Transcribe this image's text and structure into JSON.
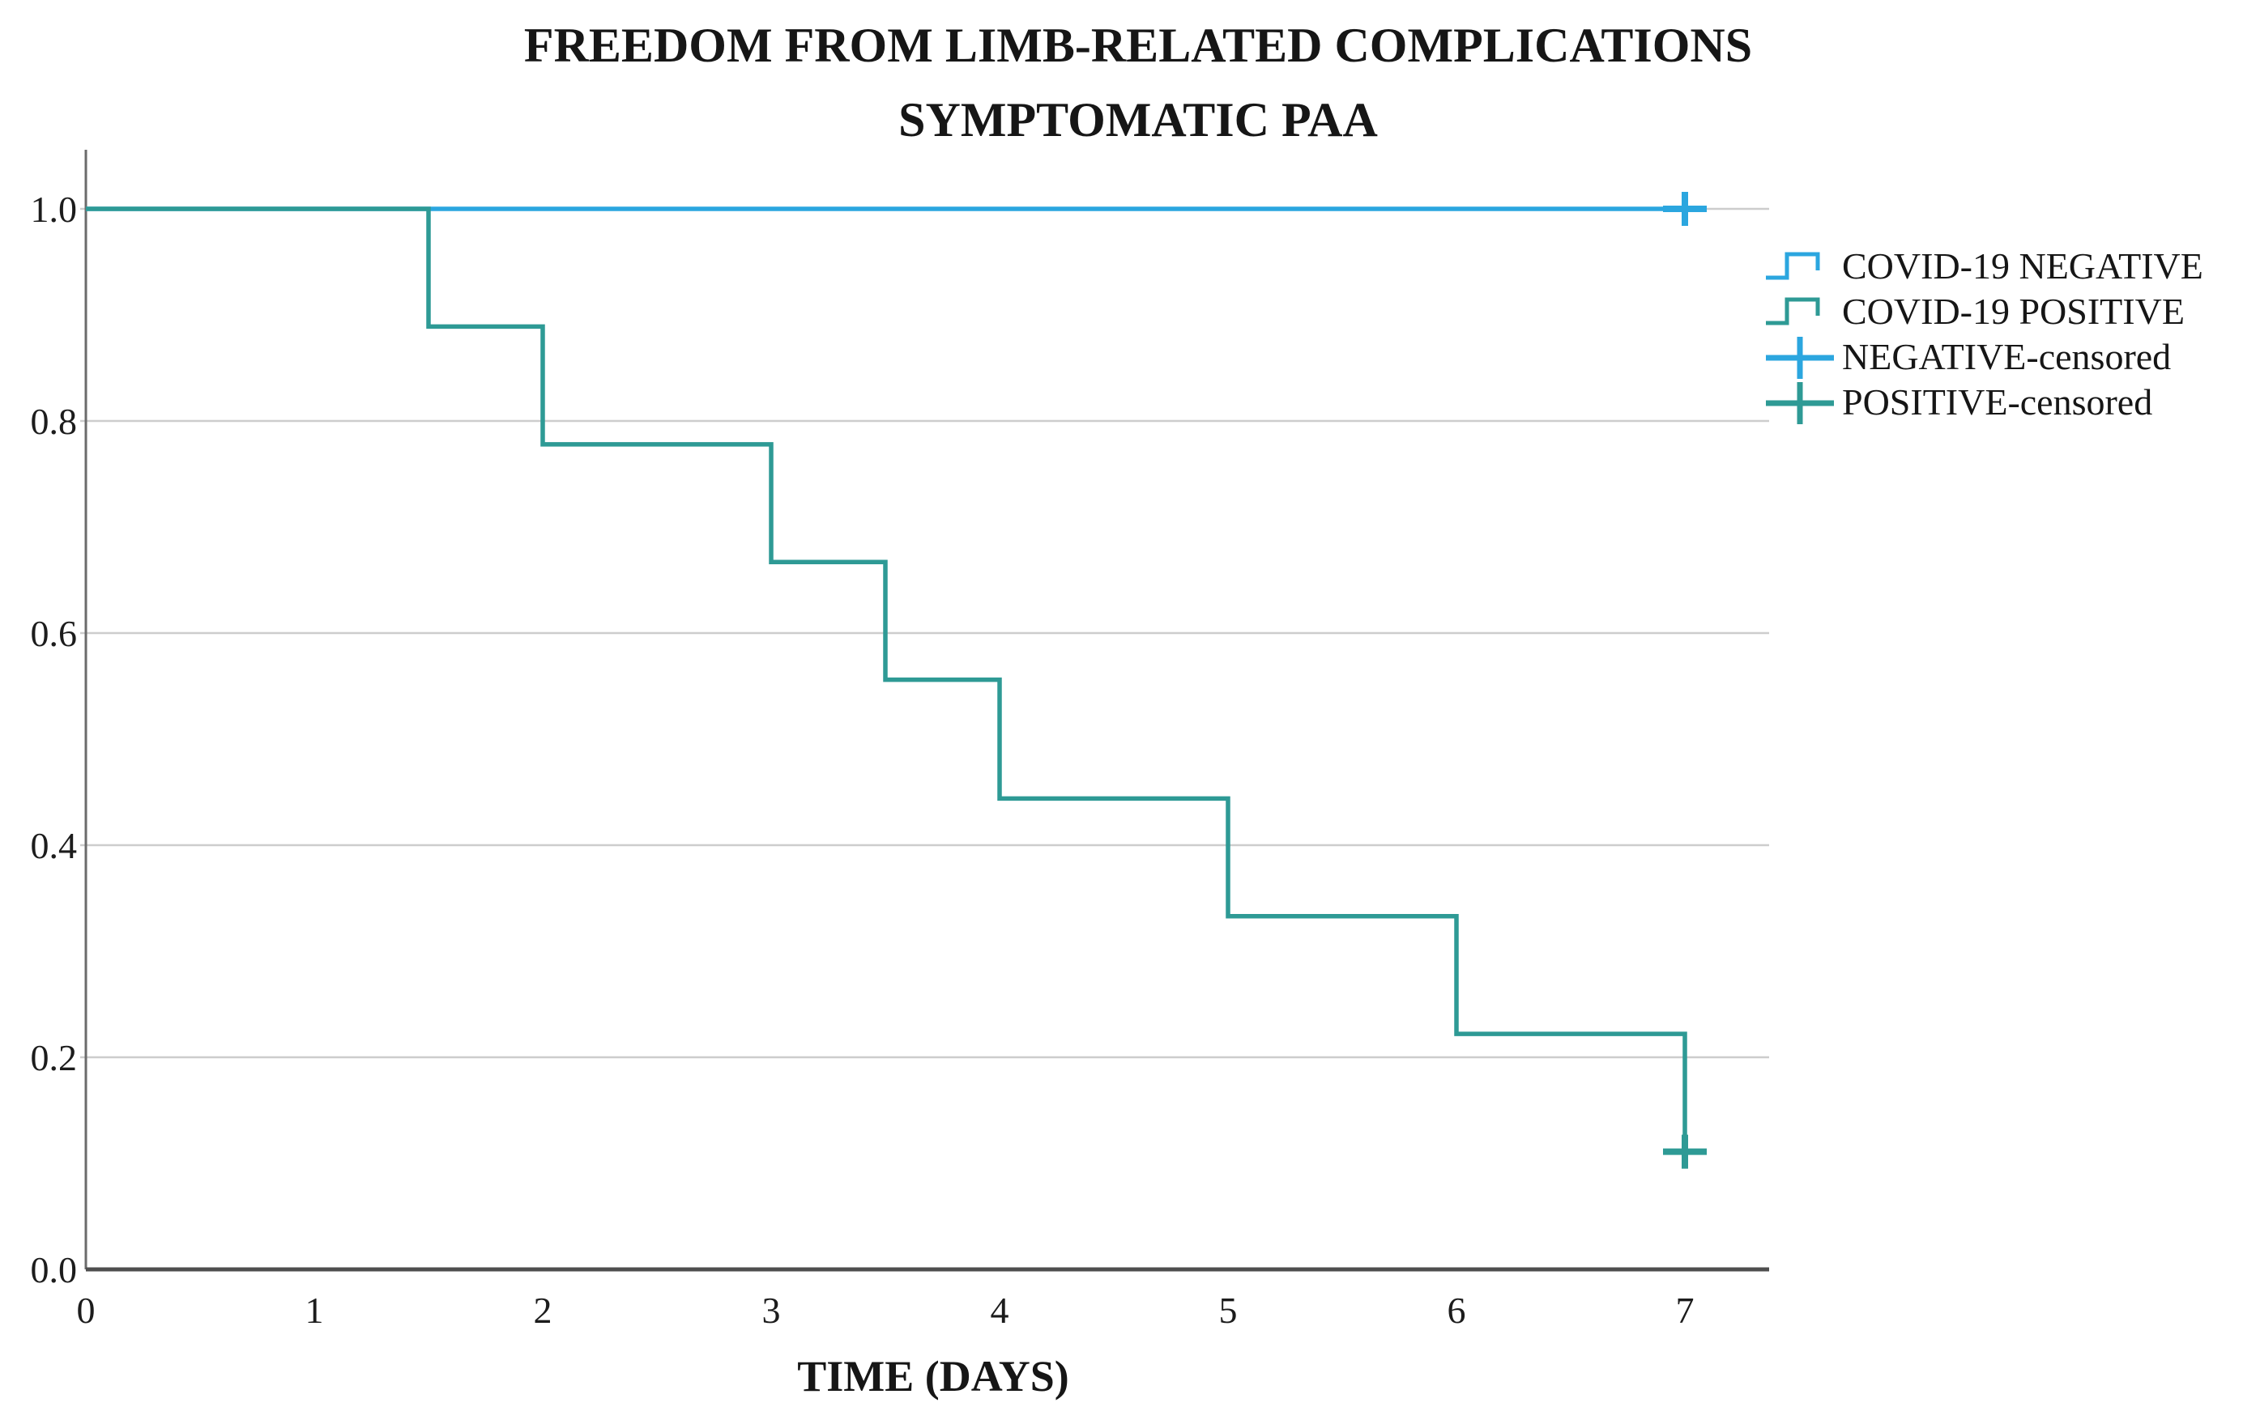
{
  "chart_data": {
    "type": "line",
    "subtype": "kaplan-meier-step-survival",
    "title": "FREEDOM FROM LIMB-RELATED COMPLICATIONS",
    "subtitle": "SYMPTOMATIC PAA",
    "xlabel": "TIME (DAYS)",
    "ylabel": "",
    "xlim": [
      0,
      7.35
    ],
    "ylim": [
      0,
      1.05
    ],
    "x_ticks": [
      0,
      1,
      2,
      3,
      4,
      5,
      6,
      7
    ],
    "y_ticks": [
      "0.0",
      "0.2",
      "0.4",
      "0.6",
      "0.8",
      "1.0"
    ],
    "grid": "horizontal-only",
    "legend_position": "right",
    "series": [
      {
        "name": "COVID-19 NEGATIVE",
        "color": "#2BA6DF",
        "points": [
          {
            "time": 0,
            "survival": 1.0
          },
          {
            "time": 7,
            "survival": 1.0
          }
        ],
        "censored": [
          {
            "time": 7,
            "survival": 1.0
          }
        ]
      },
      {
        "name": "COVID-19 POSITIVE",
        "color": "#2E9A95",
        "points": [
          {
            "time": 0,
            "survival": 1.0
          },
          {
            "time": 1.5,
            "survival": 0.889
          },
          {
            "time": 2,
            "survival": 0.778
          },
          {
            "time": 3,
            "survival": 0.667
          },
          {
            "time": 3.5,
            "survival": 0.556
          },
          {
            "time": 4,
            "survival": 0.444
          },
          {
            "time": 5,
            "survival": 0.333
          },
          {
            "time": 6,
            "survival": 0.222
          },
          {
            "time": 7,
            "survival": 0.111
          }
        ],
        "censored": [
          {
            "time": 7,
            "survival": 0.111
          }
        ]
      }
    ],
    "legend": [
      {
        "label": "COVID-19 NEGATIVE",
        "symbol": "step-line",
        "color": "#2BA6DF"
      },
      {
        "label": "COVID-19 POSITIVE",
        "symbol": "step-line",
        "color": "#2E9A95"
      },
      {
        "label": "NEGATIVE-censored",
        "symbol": "plus",
        "color": "#2BA6DF"
      },
      {
        "label": "POSITIVE-censored",
        "symbol": "plus",
        "color": "#2E9A95"
      }
    ]
  },
  "colors": {
    "negative_blue": "#2BA6DF",
    "positive_teal": "#2E9A95",
    "gridline": "#CDCDCD",
    "y_axis": "#6B6B6B",
    "x_axis": "#4E4E4E",
    "text": "#161616",
    "background": "#FFFFFF"
  }
}
